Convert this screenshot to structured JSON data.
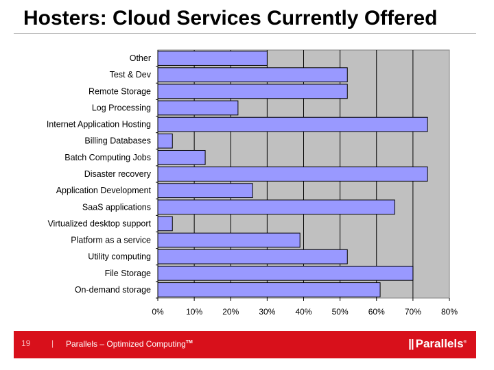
{
  "slide": {
    "title": "Hosters: Cloud Services Currently Offered",
    "page_number": "19",
    "separator": "|",
    "tagline": "Parallels – Optimized Computing",
    "tagline_mark": "TM",
    "logo_text": "Parallels",
    "logo_mark": "®"
  },
  "colors": {
    "bar_fill": "#9999ff",
    "plot_background": "#c0c0c0",
    "footer": "#d8101b"
  },
  "chart_data": {
    "type": "bar",
    "orientation": "horizontal",
    "title": "",
    "xlabel": "",
    "ylabel": "",
    "xlim": [
      0,
      80
    ],
    "x_ticks": [
      "0%",
      "10%",
      "20%",
      "30%",
      "40%",
      "50%",
      "60%",
      "70%",
      "80%"
    ],
    "grid": "vertical",
    "legend": "none",
    "categories": [
      "Other",
      "Test & Dev",
      "Remote Storage",
      "Log Processing",
      "Internet Application Hosting",
      "Billing Databases",
      "Batch Computing Jobs",
      "Disaster recovery",
      "Application Development",
      "SaaS applications",
      "Virtualized desktop support",
      "Platform as a service",
      "Utility computing",
      "File Storage",
      "On-demand storage"
    ],
    "values": [
      30,
      52,
      52,
      22,
      74,
      4,
      13,
      74,
      26,
      65,
      4,
      39,
      52,
      70,
      61
    ]
  }
}
